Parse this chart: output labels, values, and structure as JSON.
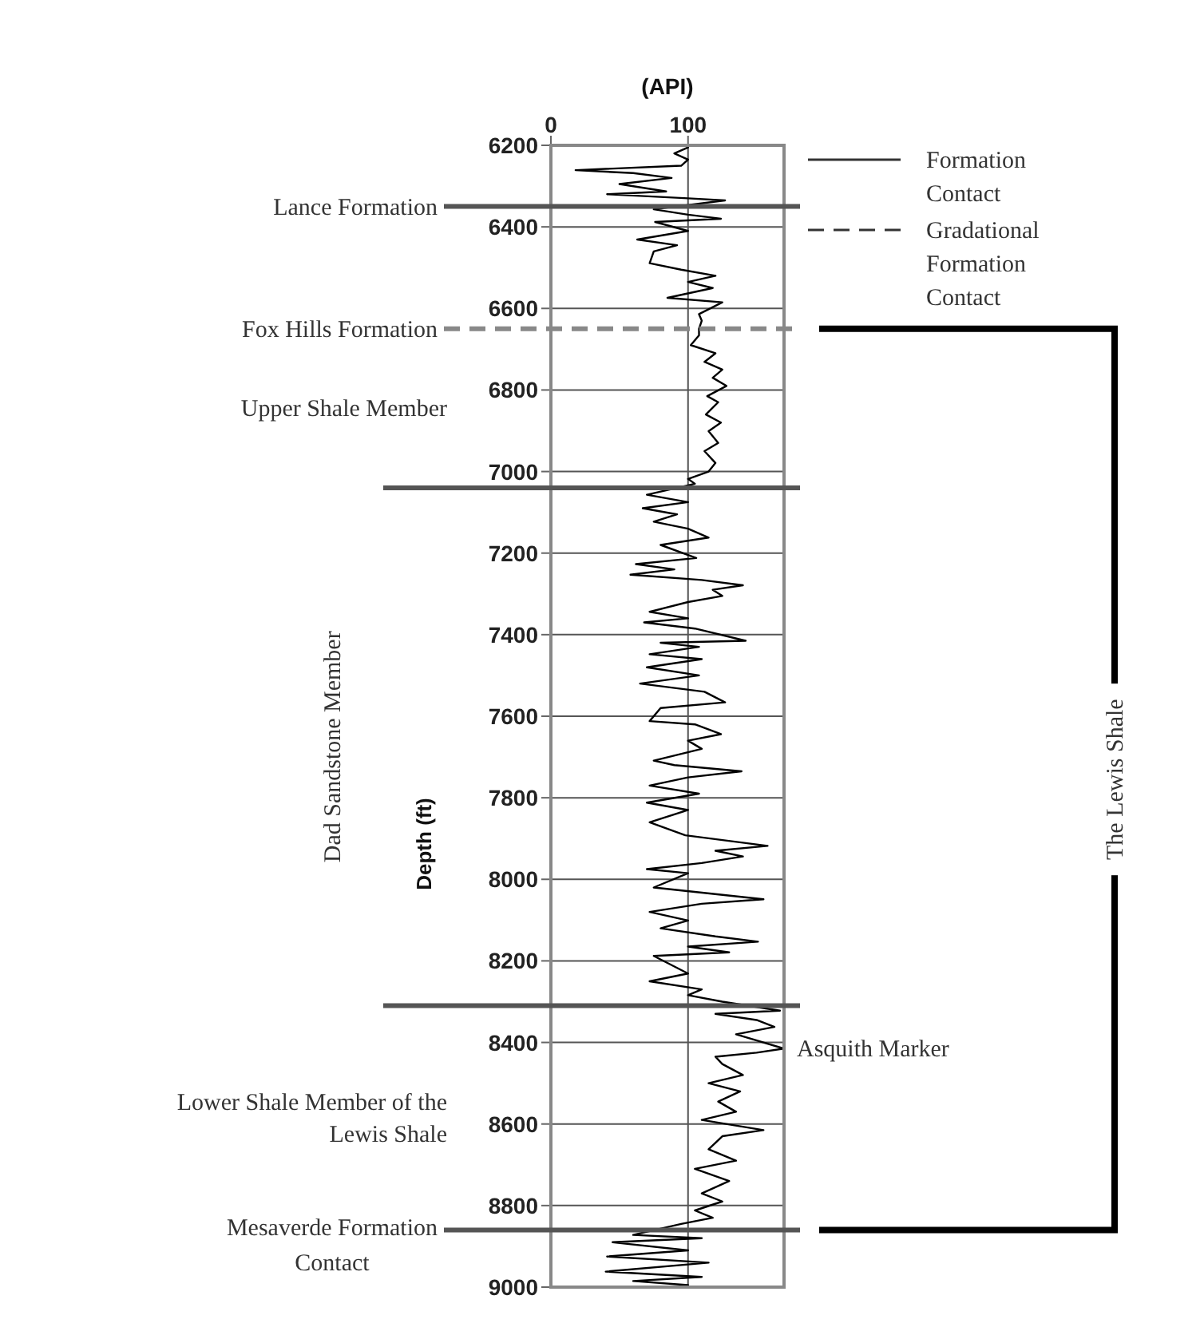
{
  "chart_data": {
    "type": "line",
    "xlabel": "(API)",
    "ylabel": "Depth (ft)",
    "xlim": [
      0,
      170
    ],
    "xticks": [
      0,
      100
    ],
    "ylim": [
      9000,
      6200
    ],
    "yticks": [
      6200,
      6400,
      6600,
      6800,
      7000,
      7200,
      7400,
      7600,
      7800,
      8000,
      8200,
      8400,
      8600,
      8800,
      9000
    ],
    "grid": true,
    "marker": "none",
    "line_style": "solid",
    "series": [
      {
        "color": "#000000",
        "x": [
          100,
          90,
          100,
          95,
          18,
          60,
          88,
          50,
          84,
          41,
          100,
          127,
          75,
          100,
          124,
          76,
          100,
          63,
          92,
          75,
          72,
          95,
          120,
          100,
          118,
          85,
          125,
          108,
          110,
          108,
          108,
          102,
          120,
          112,
          125,
          118,
          128,
          114,
          122,
          113,
          124,
          115,
          122,
          112,
          120,
          115,
          100,
          105,
          70,
          100,
          67,
          92,
          75,
          100,
          115,
          80,
          106,
          62,
          90,
          58,
          110,
          140,
          118,
          125,
          100,
          72,
          100,
          68,
          105,
          142,
          80,
          108,
          72,
          110,
          70,
          108,
          65,
          112,
          127,
          80,
          72,
          105,
          124,
          100,
          110,
          75,
          90,
          139,
          100,
          72,
          108,
          70,
          100,
          72,
          98,
          158,
          120,
          140,
          110,
          70,
          100,
          75,
          155,
          110,
          72,
          100,
          80,
          120,
          151,
          100,
          130,
          75,
          100,
          72,
          110,
          100,
          125,
          167,
          120,
          150,
          163,
          135,
          170,
          150,
          120,
          125,
          140,
          115,
          138,
          122,
          135,
          110,
          155,
          125,
          115,
          135,
          105,
          130,
          110,
          125,
          105,
          118,
          95,
          60,
          110,
          45,
          100,
          41,
          115,
          40,
          110,
          60,
          100
        ],
        "values": [
          6205,
          6220,
          6235,
          6250,
          6261,
          6268,
          6280,
          6295,
          6313,
          6320,
          6330,
          6335,
          6357,
          6370,
          6380,
          6388,
          6410,
          6431,
          6445,
          6460,
          6489,
          6505,
          6520,
          6535,
          6550,
          6574,
          6585,
          6614,
          6630,
          6650,
          6666,
          6690,
          6710,
          6731,
          6750,
          6770,
          6790,
          6815,
          6830,
          6860,
          6880,
          6901,
          6930,
          6950,
          6979,
          7000,
          7018,
          7030,
          7057,
          7075,
          7090,
          7105,
          7123,
          7140,
          7162,
          7180,
          7212,
          7227,
          7240,
          7253,
          7266,
          7279,
          7290,
          7305,
          7320,
          7344,
          7360,
          7370,
          7385,
          7415,
          7420,
          7430,
          7448,
          7460,
          7480,
          7500,
          7520,
          7540,
          7566,
          7580,
          7612,
          7620,
          7644,
          7660,
          7680,
          7709,
          7720,
          7735,
          7750,
          7770,
          7790,
          7812,
          7830,
          7860,
          7892,
          7918,
          7930,
          7944,
          7960,
          7975,
          7985,
          8020,
          8049,
          8060,
          8080,
          8101,
          8120,
          8140,
          8153,
          8165,
          8179,
          8188,
          8231,
          8250,
          8270,
          8284,
          8300,
          8322,
          8330,
          8345,
          8362,
          8380,
          8415,
          8425,
          8435,
          8453,
          8480,
          8500,
          8520,
          8545,
          8570,
          8590,
          8615,
          8630,
          8662,
          8690,
          8710,
          8740,
          8770,
          8790,
          8812,
          8830,
          8845,
          8872,
          8880,
          8890,
          8910,
          8925,
          8940,
          8962,
          8975,
          8985,
          8995
        ]
      }
    ],
    "ref_lines": [
      {
        "axis": "y",
        "value": 6350,
        "label": "Lance Formation",
        "color": "#555555",
        "line_style": "solid"
      },
      {
        "axis": "y",
        "value": 6650,
        "label": "Fox Hills Formation",
        "color": "#888888",
        "line_style": "dashed"
      },
      {
        "axis": "y",
        "value": 7040,
        "color": "#555555",
        "line_style": "solid"
      },
      {
        "axis": "y",
        "value": 8310,
        "color": "#555555",
        "line_style": "solid"
      },
      {
        "axis": "y",
        "value": 8860,
        "label": "Mesaverde Formation Contact",
        "color": "#555555",
        "line_style": "solid"
      }
    ],
    "annotations": [
      "Formation Contact",
      "Gradational Formation Contact",
      "Upper Shale Member",
      "Dad Sandstone Member",
      "Lower Shale Member of the Lewis Shale",
      "The Lewis Shale",
      {
        "text": "Asquith Marker",
        "x": 170,
        "y": 8415
      }
    ]
  }
}
